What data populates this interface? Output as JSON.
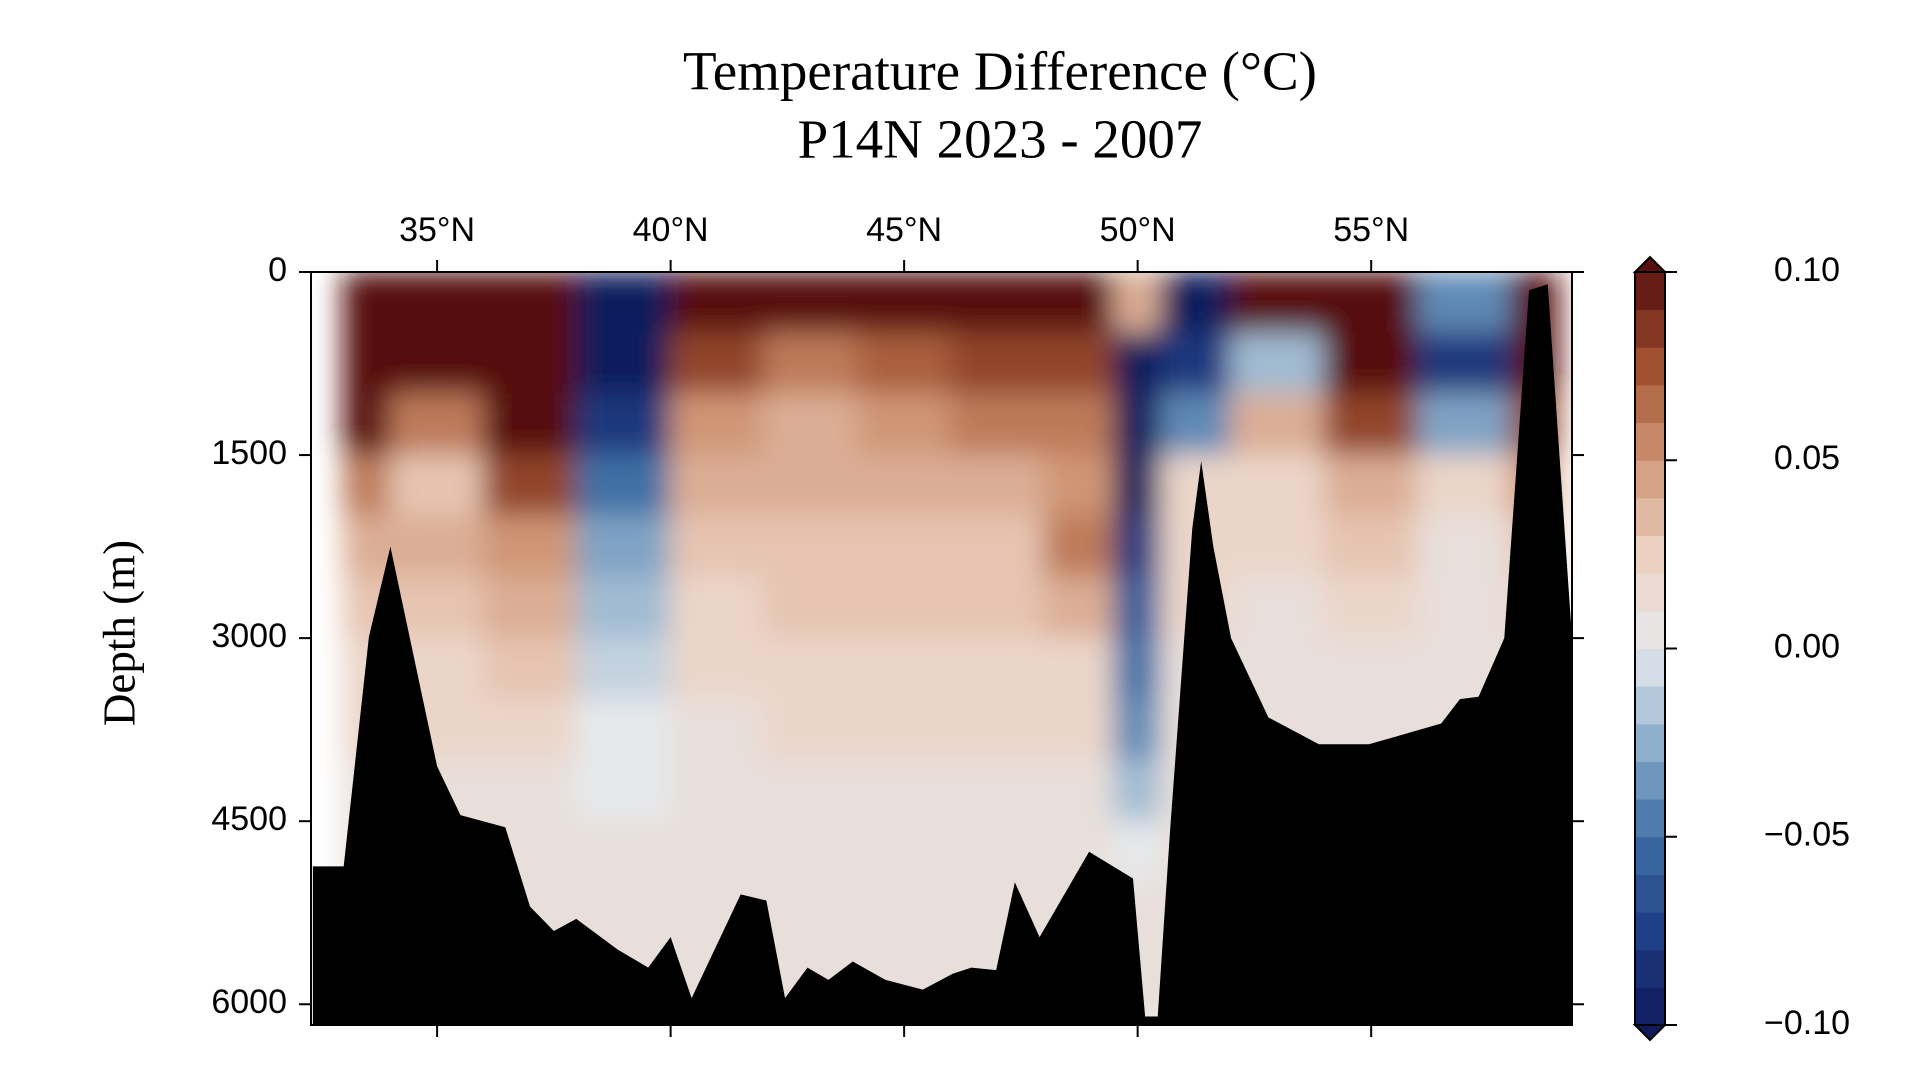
{
  "chart_data": {
    "type": "contour",
    "title": "Temperature Difference (°C)",
    "subtitle": "P14N 2023 - 2007",
    "y_label": "Depth (m)",
    "xlim": [
      32.3,
      59.3
    ],
    "xticks": [
      {
        "value": 35,
        "label": "35°N"
      },
      {
        "value": 40,
        "label": "40°N"
      },
      {
        "value": 45,
        "label": "45°N"
      },
      {
        "value": 50,
        "label": "50°N"
      },
      {
        "value": 55,
        "label": "55°N"
      }
    ],
    "ylim": [
      0,
      6170
    ],
    "y_inverted": true,
    "yticks": [
      0,
      1500,
      3000,
      4500,
      6000
    ],
    "x": [
      33,
      35,
      37,
      39,
      41,
      43,
      45,
      47,
      49,
      50,
      51,
      53,
      55,
      57,
      59
    ],
    "depths": [
      250,
      750,
      1250,
      1750,
      2250,
      2750,
      3250,
      3750,
      4250,
      4750,
      5250,
      5750
    ],
    "z": [
      [
        0.1,
        0.1,
        0.1,
        0.06,
        0.04,
        0.03,
        0.02,
        0.02,
        0.01,
        0.01,
        0.01,
        0.01
      ],
      [
        0.1,
        0.1,
        0.06,
        0.03,
        0.04,
        0.03,
        0.02,
        0.02,
        0.01,
        0.01,
        0.01,
        0.01
      ],
      [
        0.1,
        0.1,
        0.1,
        0.08,
        0.05,
        0.04,
        0.03,
        0.02,
        0.01,
        0.01,
        0.01,
        0.01
      ],
      [
        -0.1,
        -0.1,
        -0.08,
        -0.05,
        -0.03,
        -0.02,
        -0.01,
        0.0,
        0.0,
        0.01,
        0.01,
        0.01
      ],
      [
        0.1,
        0.08,
        0.05,
        0.04,
        0.03,
        0.02,
        0.02,
        0.01,
        0.01,
        0.01,
        0.01,
        0.01
      ],
      [
        0.1,
        0.06,
        0.04,
        0.04,
        0.03,
        0.03,
        0.02,
        0.02,
        0.01,
        0.01,
        0.01,
        0.01
      ],
      [
        0.1,
        0.07,
        0.05,
        0.04,
        0.03,
        0.03,
        0.02,
        0.02,
        0.01,
        0.01,
        0.01,
        0.01
      ],
      [
        0.1,
        0.08,
        0.06,
        0.04,
        0.03,
        0.03,
        0.02,
        0.02,
        0.01,
        0.01,
        0.01,
        0.01
      ],
      [
        0.1,
        0.08,
        0.06,
        0.05,
        0.06,
        0.04,
        0.02,
        0.02,
        0.01,
        0.01,
        0.01,
        0.01
      ],
      [
        0.04,
        -0.1,
        -0.1,
        -0.1,
        -0.08,
        -0.06,
        -0.05,
        -0.04,
        -0.02,
        0.0,
        0.01,
        0.01
      ],
      [
        -0.1,
        -0.08,
        -0.04,
        0.02,
        0.02,
        0.02,
        0.01,
        0.01,
        0.01,
        0.01,
        0.01,
        0.01
      ],
      [
        0.1,
        -0.02,
        0.04,
        0.02,
        0.02,
        0.01,
        0.01,
        0.01,
        0.01,
        0.01,
        0.01,
        0.01
      ],
      [
        0.1,
        0.1,
        0.08,
        0.04,
        0.03,
        0.02,
        0.01,
        0.01,
        0.01,
        0.01,
        0.01,
        0.01
      ],
      [
        -0.04,
        -0.08,
        -0.03,
        0.02,
        0.01,
        0.01,
        0.01,
        0.01,
        0.01,
        0.01,
        0.01,
        0.01
      ],
      [
        0.1,
        0.1,
        0.08,
        0.05,
        0.03,
        0.02,
        0.01,
        0.01,
        0.01,
        0.01,
        0.01,
        0.01
      ]
    ],
    "bathymetry": {
      "color": "#000000",
      "x": [
        32.34,
        33.0,
        33.54,
        34.0,
        35.0,
        35.5,
        36.46,
        36.99,
        37.5,
        37.98,
        38.86,
        39.52,
        40.0,
        40.45,
        41.5,
        42.05,
        42.45,
        42.93,
        43.38,
        43.9,
        44.6,
        45.4,
        46.04,
        46.44,
        46.97,
        47.37,
        47.9,
        48.96,
        49.9,
        50.16,
        50.43,
        50.69,
        51.17,
        51.36,
        51.62,
        52.0,
        52.8,
        53.88,
        54.95,
        56.5,
        56.9,
        57.3,
        57.85,
        58.38,
        58.78,
        59.3
      ],
      "depth": [
        4870,
        4870,
        2990,
        2250,
        4050,
        4450,
        4550,
        5200,
        5400,
        5300,
        5550,
        5700,
        5450,
        5950,
        5100,
        5150,
        5950,
        5700,
        5800,
        5650,
        5800,
        5880,
        5750,
        5700,
        5720,
        5000,
        5450,
        4750,
        4970,
        6100,
        6100,
        4600,
        2100,
        1550,
        2250,
        3000,
        3650,
        3870,
        3870,
        3700,
        3500,
        3480,
        3000,
        150,
        100,
        3000
      ]
    },
    "clim": [
      -0.1,
      0.1
    ],
    "colorbar_levels": 20,
    "colors": [
      "#0f1a5b",
      "#1f3f86",
      "#3f6fa5",
      "#8fb0cc",
      "#e6e9ec",
      "#ecd0c0",
      "#cf9676",
      "#a1512f",
      "#561010"
    ],
    "colorbar_ticks": [
      {
        "value": 0.1,
        "label": "0.10"
      },
      {
        "value": 0.05,
        "label": "0.05"
      },
      {
        "value": 0,
        "label": "0.00"
      },
      {
        "value": -0.05,
        "label": "−0.05"
      },
      {
        "value": -0.1,
        "label": "−0.10"
      }
    ]
  }
}
